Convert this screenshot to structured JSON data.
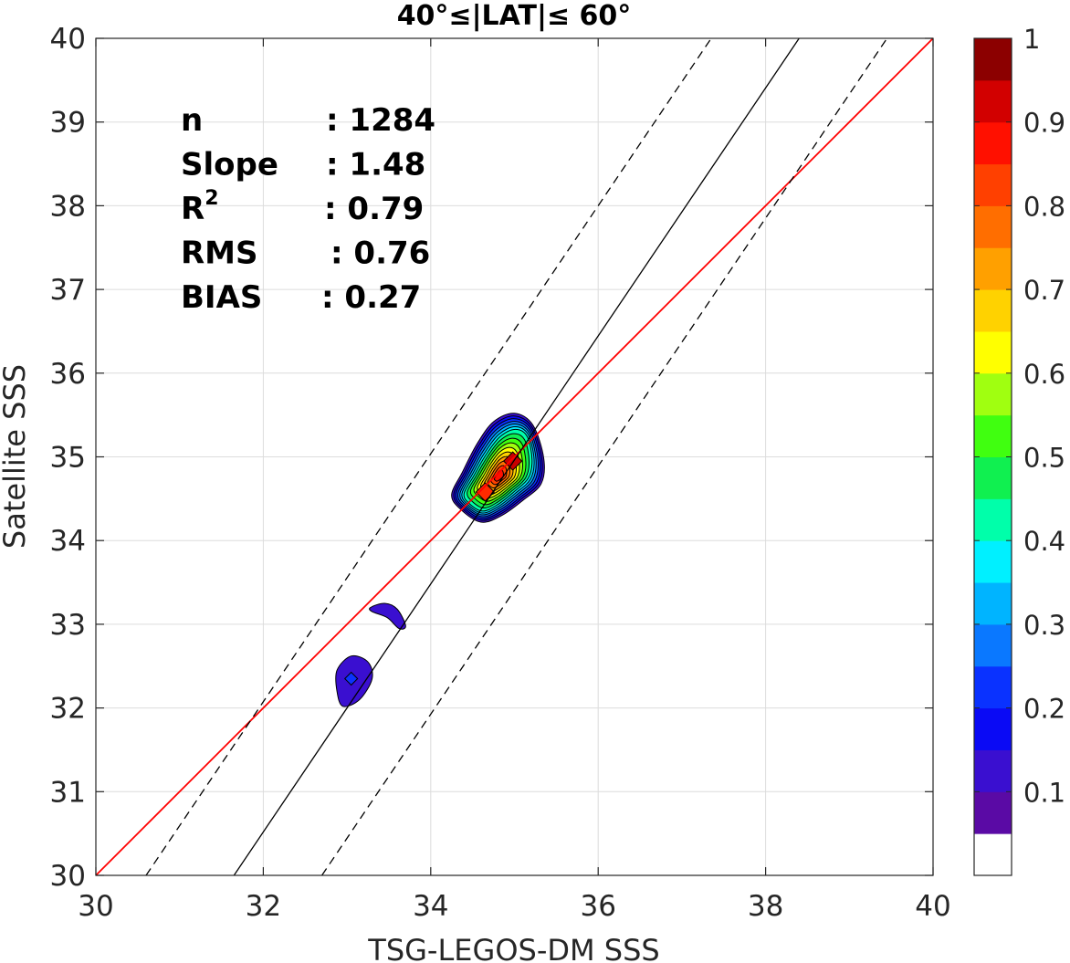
{
  "chart_data": {
    "type": "contour",
    "title": "40°≤|LAT|≤ 60°",
    "xlabel": "TSG-LEGOS-DM SSS",
    "ylabel": "Satellite SSS",
    "xlim": [
      30,
      40
    ],
    "ylim": [
      30,
      40
    ],
    "xticks": [
      30,
      32,
      34,
      36,
      38,
      40
    ],
    "yticks": [
      30,
      31,
      32,
      33,
      34,
      35,
      36,
      37,
      38,
      39,
      40
    ],
    "grid": true,
    "stats": [
      {
        "label": "n",
        "sep": ": ",
        "value": "1284"
      },
      {
        "label": "Slope",
        "sep": ": ",
        "value": "1.48"
      },
      {
        "label": "R",
        "sup": "2",
        "sep": ": ",
        "value": "0.79"
      },
      {
        "label": "RMS",
        "sep": ": ",
        "value": "0.76"
      },
      {
        "label": "BIAS",
        "sep": ": ",
        "value": "0.27"
      }
    ],
    "lines": [
      {
        "kind": "one-to-one",
        "color": "#ff0000",
        "dash": "solid",
        "points": [
          [
            30,
            30
          ],
          [
            40,
            40
          ]
        ]
      },
      {
        "kind": "regression",
        "color": "#000000",
        "dash": "solid",
        "slope": 1.48,
        "points": [
          [
            31.65,
            30
          ],
          [
            38.4,
            40
          ]
        ]
      },
      {
        "kind": "upper-bound",
        "color": "#000000",
        "dash": "dashed",
        "points": [
          [
            30.6,
            30
          ],
          [
            37.35,
            40
          ]
        ]
      },
      {
        "kind": "lower-bound",
        "color": "#000000",
        "dash": "dashed",
        "points": [
          [
            32.7,
            30
          ],
          [
            39.45,
            40
          ]
        ]
      }
    ],
    "density_peaks": [
      {
        "x": 34.98,
        "y": 34.95,
        "peak": 0.95
      },
      {
        "x": 34.65,
        "y": 34.58,
        "peak": 0.92
      },
      {
        "x": 33.45,
        "y": 33.05,
        "peak": 0.1
      },
      {
        "x": 33.05,
        "y": 32.35,
        "peak": 0.15
      }
    ],
    "colorbar": {
      "range": [
        0,
        1
      ],
      "ticks": [
        0.1,
        0.2,
        0.3,
        0.4,
        0.5,
        0.6,
        0.7,
        0.8,
        0.9,
        1
      ],
      "tick_labels": [
        "0.1",
        "0.2",
        "0.3",
        "0.4",
        "0.5",
        "0.6",
        "0.7",
        "0.8",
        "0.9",
        "1"
      ],
      "colors": [
        "#ffffff",
        "#5a0aa5",
        "#3a0fd0",
        "#0a0af5",
        "#0a32ff",
        "#0a78ff",
        "#00b4ff",
        "#00f0ff",
        "#00ffaa",
        "#10f050",
        "#40ff10",
        "#a0ff10",
        "#ffff00",
        "#ffd200",
        "#ffa000",
        "#ff6e00",
        "#ff4000",
        "#ff1000",
        "#d20000",
        "#8c0000"
      ]
    }
  }
}
